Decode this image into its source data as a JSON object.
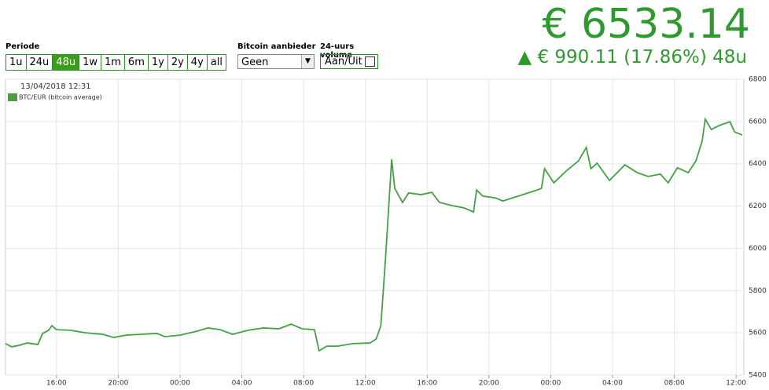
{
  "header": {
    "price": "€ 6533.14",
    "change": "▲ € 990.11 (17.86%) 48u"
  },
  "controls": {
    "period_label": "Periode",
    "periods": [
      {
        "label": "1u"
      },
      {
        "label": "24u"
      },
      {
        "label": "48u",
        "selected": true
      },
      {
        "label": "1w"
      },
      {
        "label": "1m"
      },
      {
        "label": "6m"
      },
      {
        "label": "1y"
      },
      {
        "label": "2y"
      },
      {
        "label": "4y"
      },
      {
        "label": "all"
      }
    ],
    "provider_label": "Bitcoin aanbieder",
    "provider_value": "Geen",
    "volume_label": "24-uurs volume",
    "volume_toggle": "Aan/Uit"
  },
  "chart_data": {
    "type": "line",
    "annotation": "13/04/2018 12:31",
    "grid": true,
    "legend": "top-left",
    "series": [
      {
        "name": "BTC/EUR (bitcoin average)",
        "color": "#45a045",
        "x": [
          -3.3,
          -2.9,
          -2.4,
          -1.9,
          -1.2,
          -0.9,
          -0.5,
          -0.3,
          0,
          0.9,
          1.9,
          3.0,
          3.7,
          4.5,
          5.5,
          6.5,
          7.0,
          8.0,
          9.1,
          9.8,
          10.6,
          11.4,
          12.4,
          13.4,
          14.4,
          15.2,
          15.9,
          16.7,
          17.0,
          17.5,
          18.2,
          19.2,
          20.3,
          20.7,
          21.0,
          21.3,
          21.7,
          21.9,
          22.4,
          22.8,
          23.6,
          24.3,
          24.8,
          25.6,
          26.4,
          27.0,
          27.2,
          27.6,
          28.4,
          28.9,
          29.9,
          31.0,
          31.4,
          31.6,
          32.2,
          33.0,
          33.8,
          34.3,
          34.6,
          35.0,
          35.8,
          36.8,
          37.6,
          38.3,
          39.1,
          39.6,
          40.2,
          40.9,
          41.4,
          41.8,
          42.0,
          42.4,
          42.9,
          43.6,
          43.9,
          44.4
        ],
        "values": [
          5549,
          5534,
          5541,
          5552,
          5545,
          5597,
          5612,
          5634,
          5615,
          5612,
          5600,
          5593,
          5578,
          5589,
          5593,
          5597,
          5582,
          5589,
          5608,
          5623,
          5615,
          5593,
          5612,
          5623,
          5619,
          5641,
          5619,
          5615,
          5515,
          5537,
          5537,
          5549,
          5552,
          5571,
          5634,
          5950,
          6421,
          6284,
          6217,
          6262,
          6254,
          6265,
          6217,
          6202,
          6191,
          6172,
          6276,
          6247,
          6239,
          6224,
          6247,
          6273,
          6284,
          6377,
          6310,
          6366,
          6414,
          6477,
          6377,
          6403,
          6321,
          6395,
          6358,
          6340,
          6351,
          6310,
          6381,
          6358,
          6414,
          6507,
          6611,
          6562,
          6581,
          6599,
          6551,
          6536
        ]
      }
    ],
    "xlim": [
      -3.3,
      44.5
    ],
    "xticks": [
      {
        "value": 0,
        "label": "16:00"
      },
      {
        "value": 4,
        "label": "20:00"
      },
      {
        "value": 8,
        "label": "00:00"
      },
      {
        "value": 12,
        "label": "04:00"
      },
      {
        "value": 16,
        "label": "08:00"
      },
      {
        "value": 20,
        "label": "12:00"
      },
      {
        "value": 24,
        "label": "16:00"
      },
      {
        "value": 28,
        "label": "20:00"
      },
      {
        "value": 32,
        "label": "00:00"
      },
      {
        "value": 36,
        "label": "04:00"
      },
      {
        "value": 40,
        "label": "08:00"
      },
      {
        "value": 44,
        "label": "12:00"
      }
    ],
    "ylim": [
      5400,
      6800
    ],
    "yticks": [
      5400,
      5600,
      5800,
      6000,
      6200,
      6400,
      6600,
      6800
    ]
  }
}
